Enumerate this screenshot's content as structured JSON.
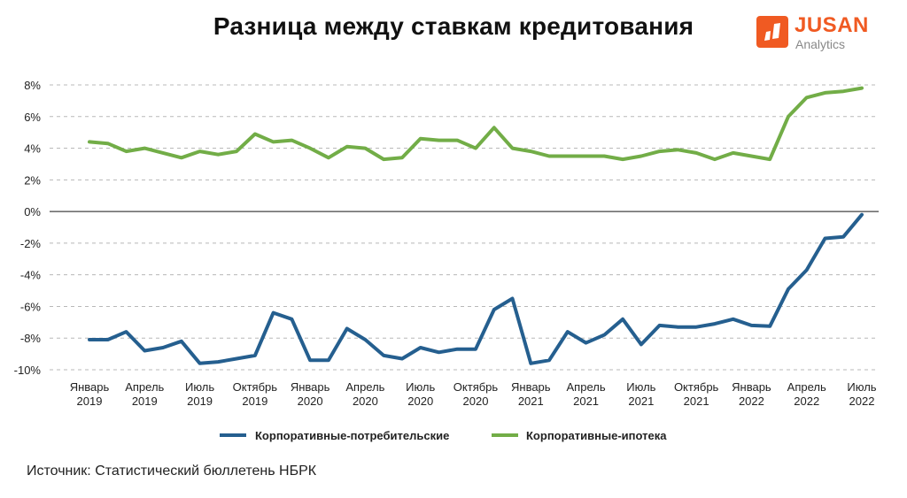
{
  "title": "Разница между ставкам кредитования",
  "logo": {
    "name": "JUSAN",
    "sub": "Analytics"
  },
  "source": "Источник: Статистический бюллетень НБРК",
  "colors": {
    "series1": "#255f8f",
    "series2": "#72ad47",
    "grid": "#b8b8b8",
    "axis": "#444444",
    "logo": "#f05a22"
  },
  "chart_data": {
    "type": "line",
    "ylim": [
      -10,
      8
    ],
    "yticks": [
      8,
      6,
      4,
      2,
      0,
      -2,
      -4,
      -6,
      -8,
      -10
    ],
    "ytick_labels": [
      "8%",
      "6%",
      "4%",
      "2%",
      "0%",
      "-2%",
      "-4%",
      "-6%",
      "-8%",
      "-10%"
    ],
    "grid": true,
    "legend_position": "bottom",
    "x_labels": [
      {
        "index": 0,
        "line1": "Январь",
        "line2": "2019"
      },
      {
        "index": 3,
        "line1": "Апрель",
        "line2": "2019"
      },
      {
        "index": 6,
        "line1": "Июль",
        "line2": "2019"
      },
      {
        "index": 9,
        "line1": "Октябрь",
        "line2": "2019"
      },
      {
        "index": 12,
        "line1": "Январь",
        "line2": "2020"
      },
      {
        "index": 15,
        "line1": "Апрель",
        "line2": "2020"
      },
      {
        "index": 18,
        "line1": "Июль",
        "line2": "2020"
      },
      {
        "index": 21,
        "line1": "Октябрь",
        "line2": "2020"
      },
      {
        "index": 24,
        "line1": "Январь",
        "line2": "2021"
      },
      {
        "index": 27,
        "line1": "Апрель",
        "line2": "2021"
      },
      {
        "index": 30,
        "line1": "Июль",
        "line2": "2021"
      },
      {
        "index": 33,
        "line1": "Октябрь",
        "line2": "2021"
      },
      {
        "index": 36,
        "line1": "Январь",
        "line2": "2022"
      },
      {
        "index": 39,
        "line1": "Апрель",
        "line2": "2022"
      },
      {
        "index": 42,
        "line1": "Июль",
        "line2": "2022"
      }
    ],
    "series": [
      {
        "name": "Корпоративные-потребительские",
        "color": "#255f8f",
        "values": [
          -8.1,
          -8.1,
          -7.6,
          -8.8,
          -8.6,
          -8.2,
          -9.6,
          -9.5,
          -9.3,
          -9.1,
          -6.4,
          -6.8,
          -9.4,
          -9.4,
          -7.4,
          -8.1,
          -9.1,
          -9.3,
          -8.6,
          -8.9,
          -8.7,
          -8.7,
          -6.2,
          -5.5,
          -9.6,
          -9.4,
          -7.6,
          -8.3,
          -7.8,
          -6.8,
          -8.4,
          -7.2,
          -7.3,
          -7.3,
          -7.1,
          -6.8,
          -7.2,
          -7.25,
          -4.9,
          -3.7,
          -1.7,
          -1.6,
          -0.2
        ]
      },
      {
        "name": "Корпоративные-ипотека",
        "color": "#72ad47",
        "values": [
          4.4,
          4.3,
          3.8,
          4.0,
          3.7,
          3.4,
          3.8,
          3.6,
          3.8,
          4.9,
          4.4,
          4.5,
          4.0,
          3.4,
          4.1,
          4.0,
          3.3,
          3.4,
          4.6,
          4.5,
          4.5,
          4.0,
          5.3,
          4.0,
          3.8,
          3.5,
          3.5,
          3.5,
          3.5,
          3.3,
          3.5,
          3.8,
          3.9,
          3.7,
          3.3,
          3.7,
          3.5,
          3.3,
          6.0,
          7.2,
          7.5,
          7.6,
          7.8
        ]
      }
    ]
  }
}
